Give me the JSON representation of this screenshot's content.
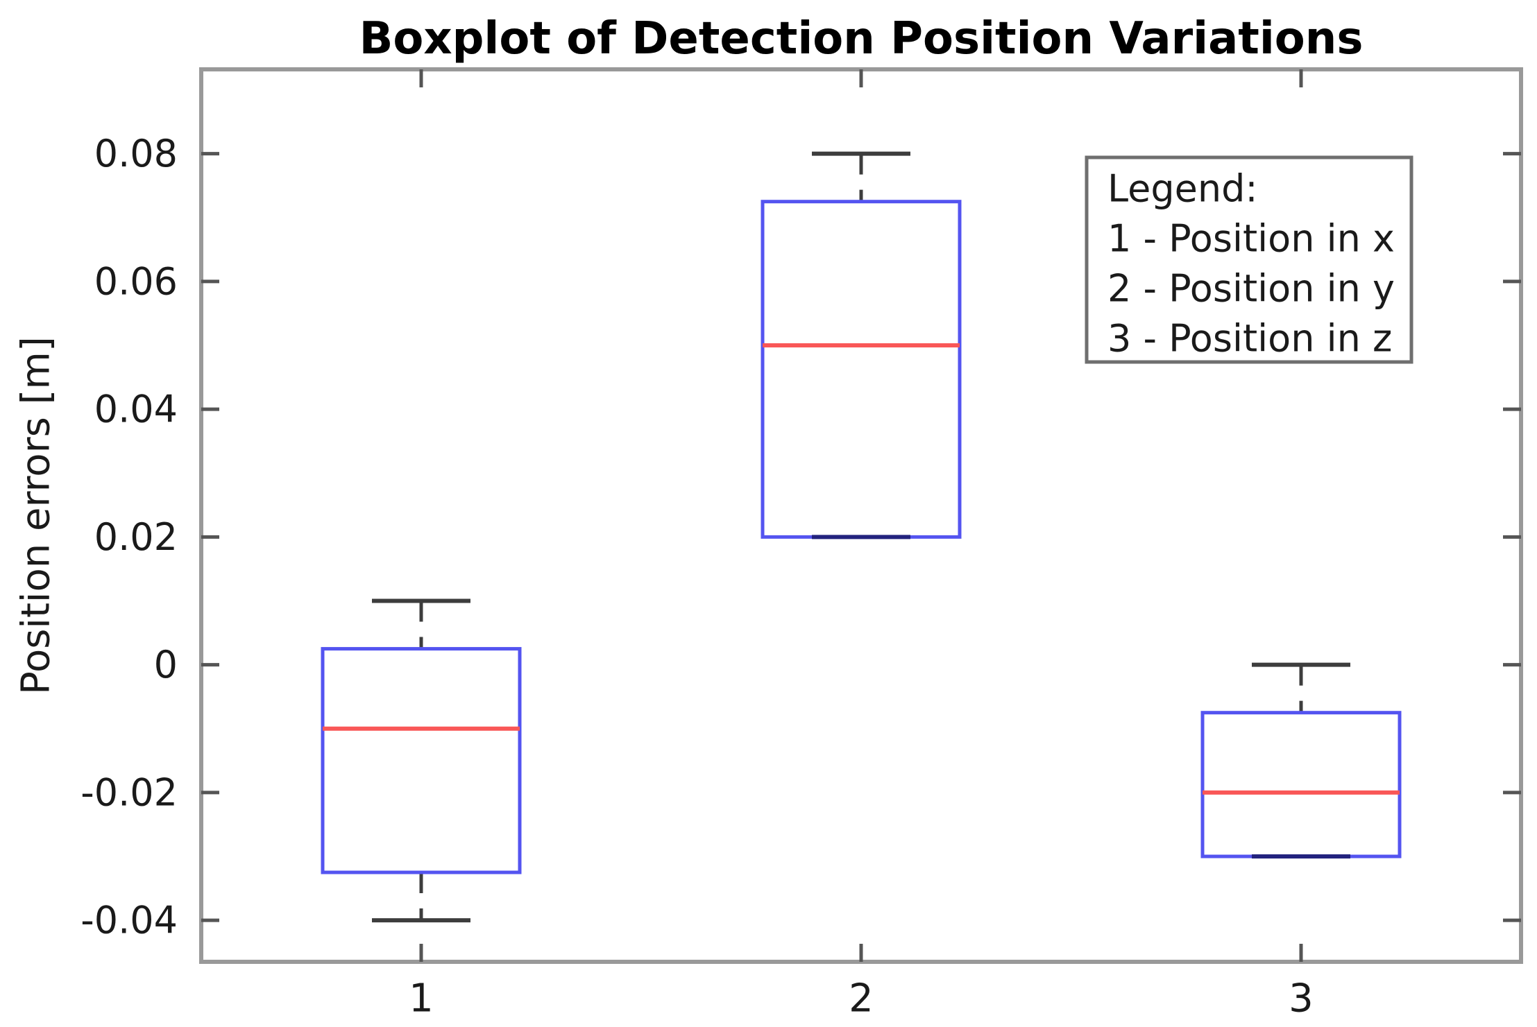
{
  "title": "Boxplot of Detection Position Variations",
  "axes": {
    "ylabel": "Position errors [m]",
    "y_tick_labels": [
      "0.08",
      "0.06",
      "0.04",
      "0.02",
      "0",
      "-0.02",
      "-0.04"
    ],
    "y_ticks": [
      0.08,
      0.06,
      0.04,
      0.02,
      0,
      -0.02,
      -0.04
    ],
    "x_tick_labels": [
      "1",
      "2",
      "3"
    ],
    "ylim": [
      -0.0465,
      0.0932
    ]
  },
  "legend": {
    "lines": [
      "Legend:",
      "1 - Position in x",
      "2 - Position in y",
      "3 - Position in z"
    ]
  },
  "colors": {
    "box_edge": "#5454f0",
    "median": "#f95757",
    "whisker": "#3d3d3d",
    "collapsed_cap": "#23237e",
    "axis_frame": "#999999",
    "tick_mark": "#555555",
    "tick_label": "#1a1a1a",
    "title_text": "#000000",
    "legend_border": "#6f6f6f",
    "background": "#ffffff"
  },
  "chart_data": {
    "type": "boxplot",
    "title": "Boxplot of Detection Position Variations",
    "xlabel": "",
    "ylabel": "Position errors [m]",
    "categories": [
      "1",
      "2",
      "3"
    ],
    "ylim": [
      -0.0465,
      0.0932
    ],
    "y_ticks": [
      0.08,
      0.06,
      0.04,
      0.02,
      0,
      -0.02,
      -0.04
    ],
    "grid": false,
    "legend_position": "upper right",
    "series": [
      {
        "category": "1",
        "name": "Position in x",
        "whisker_low": -0.04,
        "q1": -0.0325,
        "median": -0.01,
        "q3": 0.0025,
        "whisker_high": 0.01
      },
      {
        "category": "2",
        "name": "Position in y",
        "whisker_low": 0.02,
        "q1": 0.02,
        "median": 0.05,
        "q3": 0.0725,
        "whisker_high": 0.08
      },
      {
        "category": "3",
        "name": "Position in z",
        "whisker_low": -0.03,
        "q1": -0.03,
        "median": -0.02,
        "q3": -0.0075,
        "whisker_high": 0.0
      }
    ]
  }
}
